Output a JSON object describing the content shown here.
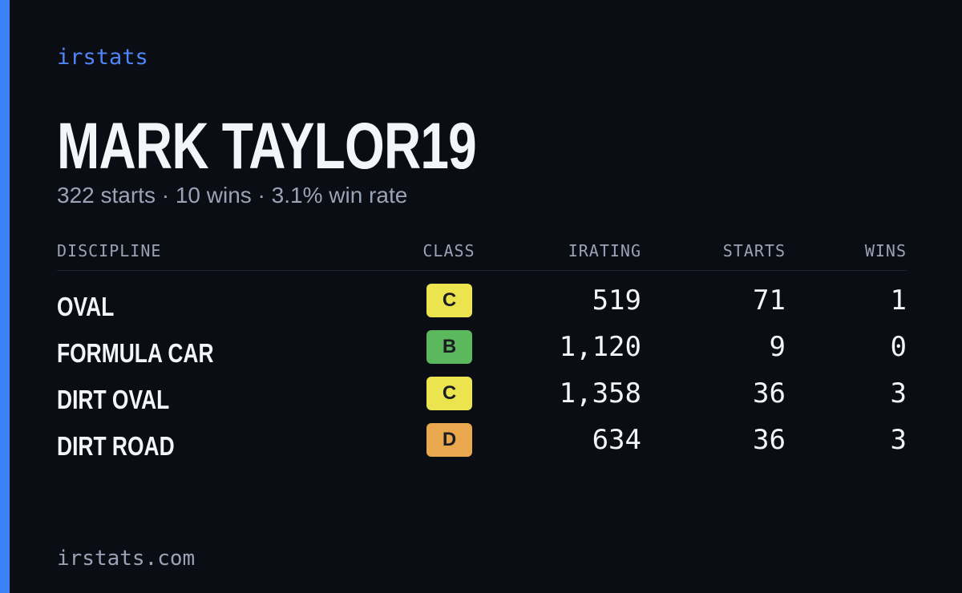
{
  "brand": "irstats",
  "driver_name": "MARK TAYLOR19",
  "summary": "322 starts · 10 wins · 3.1% win rate",
  "table": {
    "headers": [
      "DISCIPLINE",
      "CLASS",
      "IRATING",
      "STARTS",
      "WINS"
    ],
    "rows": [
      {
        "discipline": "OVAL",
        "class": "C",
        "class_color": "#ece44f",
        "irating": "519",
        "starts": "71",
        "wins": "1"
      },
      {
        "discipline": "FORMULA CAR",
        "class": "B",
        "class_color": "#5cb85c",
        "irating": "1,120",
        "starts": "9",
        "wins": "0"
      },
      {
        "discipline": "DIRT OVAL",
        "class": "C",
        "class_color": "#ece44f",
        "irating": "1,358",
        "starts": "36",
        "wins": "3"
      },
      {
        "discipline": "DIRT ROAD",
        "class": "D",
        "class_color": "#eaa84e",
        "irating": "634",
        "starts": "36",
        "wins": "3"
      }
    ]
  },
  "footer": "irstats.com"
}
